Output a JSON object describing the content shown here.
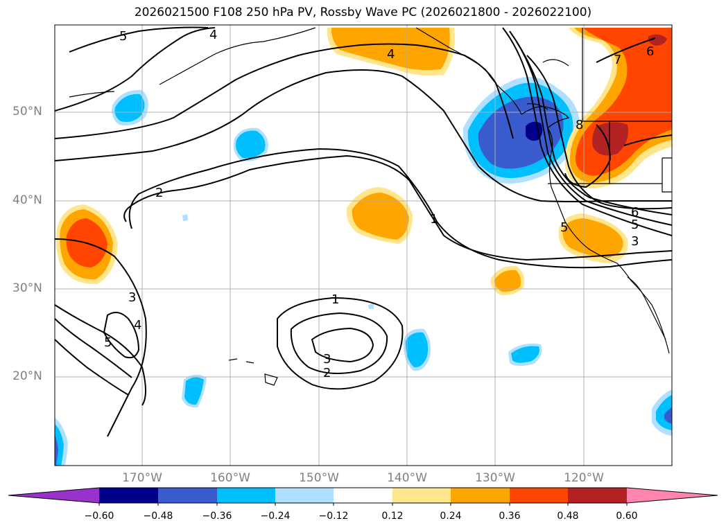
{
  "title": "2026021500 F108 250 hPa PV, Rossby Wave PC (2026021800 - 2026022100)",
  "lat_labels": [
    "50°N",
    "40°N",
    "30°N",
    "20°N"
  ],
  "lon_labels": [
    "170°W",
    "160°W",
    "150°W",
    "140°W",
    "130°W",
    "120°W"
  ],
  "contour_labels": [
    "5",
    "4",
    "2",
    "1",
    "3",
    "4",
    "5",
    "1",
    "3",
    "2",
    "4",
    "6",
    "7",
    "8",
    "6",
    "5",
    "3",
    "5"
  ],
  "colorbar": {
    "ticks": [
      "−0.60",
      "−0.48",
      "−0.36",
      "−0.24",
      "−0.12",
      "0.12",
      "0.24",
      "0.36",
      "0.48",
      "0.60"
    ],
    "colors": [
      "#9932cc",
      "#00008b",
      "#3a5bcd",
      "#00bfff",
      "#b0e0ff",
      "#ffffff",
      "#ffe68c",
      "#ffa500",
      "#ff4500",
      "#b22222",
      "#ff85b0"
    ]
  },
  "colors": {
    "neg_light": "#b0e0ff",
    "neg_mid": "#00bfff",
    "neg_strong": "#3a5bcd",
    "neg_max": "#00008b",
    "pos_light": "#ffe68c",
    "pos_mid": "#ffa500",
    "pos_strong": "#ff4500",
    "pos_max": "#b22222",
    "grid": "#b0b0b0",
    "contour": "#000000"
  }
}
